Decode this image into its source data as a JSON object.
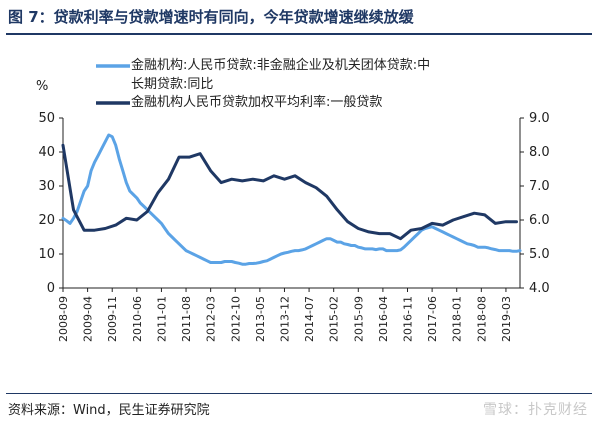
{
  "header": {
    "title": "图 7：贷款利率与贷款增速时有同向，今年贷款增速继续放缓"
  },
  "footer": {
    "source": "资料来源：Wind，民生证券研究院",
    "watermark": "雪球：扑克财经"
  },
  "colors": {
    "series1": "#5ba3e6",
    "series2": "#1f3864",
    "title": "#1f3864"
  },
  "chart_data": {
    "type": "line",
    "left_unit": "%",
    "left_ylim": [
      0,
      50
    ],
    "left_ticks": [
      "0",
      "10",
      "20",
      "30",
      "40",
      "50"
    ],
    "right_ylim": [
      4.0,
      9.0
    ],
    "right_ticks": [
      "4.0",
      "5.0",
      "6.0",
      "7.0",
      "8.0",
      "9.0"
    ],
    "x_ticks": [
      "2008-09",
      "2009-04",
      "2009-11",
      "2010-06",
      "2011-01",
      "2011-08",
      "2012-03",
      "2012-10",
      "2013-05",
      "2013-12",
      "2014-07",
      "2015-02",
      "2015-09",
      "2016-04",
      "2016-11",
      "2017-06",
      "2018-01",
      "2018-08",
      "2019-03"
    ],
    "legend_lines": [
      [
        "金融机构:人民币贷款:非金融企业及机关团体贷款:中",
        "长期贷款:同比"
      ],
      [
        "金融机构人民币贷款加权平均利率:一般贷款"
      ]
    ],
    "series": [
      {
        "axis": "left",
        "x": [
          "2008-09",
          "2008-10",
          "2008-11",
          "2008-12",
          "2009-01",
          "2009-02",
          "2009-03",
          "2009-04",
          "2009-05",
          "2009-06",
          "2009-07",
          "2009-08",
          "2009-09",
          "2009-10",
          "2009-11",
          "2009-12",
          "2010-01",
          "2010-02",
          "2010-03",
          "2010-04",
          "2010-05",
          "2010-06",
          "2010-07",
          "2010-08",
          "2010-09",
          "2010-10",
          "2010-11",
          "2010-12",
          "2011-01",
          "2011-02",
          "2011-03",
          "2011-04",
          "2011-05",
          "2011-06",
          "2011-07",
          "2011-08",
          "2011-09",
          "2011-10",
          "2011-11",
          "2011-12",
          "2012-01",
          "2012-02",
          "2012-03",
          "2012-04",
          "2012-05",
          "2012-06",
          "2012-07",
          "2012-08",
          "2012-09",
          "2012-10",
          "2012-11",
          "2012-12",
          "2013-01",
          "2013-02",
          "2013-03",
          "2013-04",
          "2013-05",
          "2013-06",
          "2013-07",
          "2013-08",
          "2013-09",
          "2013-10",
          "2013-11",
          "2013-12",
          "2014-01",
          "2014-02",
          "2014-03",
          "2014-04",
          "2014-05",
          "2014-06",
          "2014-07",
          "2014-08",
          "2014-09",
          "2014-10",
          "2014-11",
          "2014-12",
          "2015-01",
          "2015-02",
          "2015-03",
          "2015-04",
          "2015-05",
          "2015-06",
          "2015-07",
          "2015-08",
          "2015-09",
          "2015-10",
          "2015-11",
          "2015-12",
          "2016-01",
          "2016-02",
          "2016-03",
          "2016-04",
          "2016-05",
          "2016-06",
          "2016-07",
          "2016-08",
          "2016-09",
          "2016-10",
          "2016-11",
          "2016-12",
          "2017-01",
          "2017-02",
          "2017-03",
          "2017-04",
          "2017-05",
          "2017-06",
          "2017-07",
          "2017-08",
          "2017-09",
          "2017-10",
          "2017-11",
          "2017-12",
          "2018-01",
          "2018-02",
          "2018-03",
          "2018-04",
          "2018-05",
          "2018-06",
          "2018-07",
          "2018-08",
          "2018-09",
          "2018-10",
          "2018-11",
          "2018-12",
          "2019-01",
          "2019-02",
          "2019-03",
          "2019-04",
          "2019-05",
          "2019-06",
          "2019-07"
        ],
        "values": [
          20.5,
          19.8,
          19.0,
          20.5,
          22.5,
          25.5,
          28.5,
          30.0,
          34.5,
          37.0,
          39.0,
          41.0,
          43.0,
          45.0,
          44.5,
          42.0,
          38.0,
          34.5,
          31.0,
          28.5,
          27.5,
          26.5,
          25.0,
          24.0,
          23.0,
          22.0,
          21.0,
          20.0,
          19.0,
          17.5,
          16.0,
          15.0,
          14.0,
          13.0,
          12.0,
          11.0,
          10.5,
          10.0,
          9.5,
          9.0,
          8.5,
          8.0,
          7.5,
          7.5,
          7.5,
          7.5,
          7.8,
          7.8,
          7.8,
          7.5,
          7.3,
          7.0,
          7.0,
          7.2,
          7.2,
          7.3,
          7.5,
          7.8,
          8.0,
          8.5,
          9.0,
          9.5,
          10.0,
          10.3,
          10.5,
          10.8,
          11.0,
          11.0,
          11.2,
          11.5,
          12.0,
          12.5,
          13.0,
          13.5,
          14.0,
          14.5,
          14.5,
          14.0,
          13.5,
          13.5,
          13.0,
          12.8,
          12.5,
          12.5,
          12.0,
          11.8,
          11.5,
          11.5,
          11.5,
          11.3,
          11.5,
          11.5,
          11.0,
          11.0,
          11.0,
          11.0,
          11.2,
          12.0,
          13.0,
          14.0,
          15.0,
          16.0,
          17.0,
          17.5,
          17.8,
          18.0,
          17.5,
          17.0,
          16.5,
          16.0,
          15.5,
          15.0,
          14.5,
          14.0,
          13.5,
          13.0,
          12.8,
          12.5,
          12.0,
          12.0,
          12.0,
          11.8,
          11.5,
          11.3,
          11.0,
          11.0,
          11.0,
          11.0,
          10.8,
          10.8,
          11.0
        ]
      },
      {
        "axis": "right",
        "x": [
          "2008-09",
          "2008-12",
          "2009-03",
          "2009-06",
          "2009-09",
          "2009-12",
          "2010-03",
          "2010-06",
          "2010-09",
          "2010-12",
          "2011-03",
          "2011-06",
          "2011-09",
          "2011-12",
          "2012-03",
          "2012-06",
          "2012-09",
          "2012-12",
          "2013-03",
          "2013-06",
          "2013-09",
          "2013-12",
          "2014-03",
          "2014-06",
          "2014-09",
          "2014-12",
          "2015-03",
          "2015-06",
          "2015-09",
          "2015-12",
          "2016-03",
          "2016-06",
          "2016-09",
          "2016-12",
          "2017-03",
          "2017-06",
          "2017-09",
          "2017-12",
          "2018-03",
          "2018-06",
          "2018-09",
          "2018-12",
          "2019-03",
          "2019-06"
        ],
        "values": [
          8.2,
          6.3,
          5.7,
          5.7,
          5.75,
          5.85,
          6.05,
          6.0,
          6.25,
          6.8,
          7.2,
          7.85,
          7.85,
          7.95,
          7.45,
          7.1,
          7.2,
          7.15,
          7.2,
          7.15,
          7.3,
          7.2,
          7.3,
          7.1,
          6.95,
          6.7,
          6.3,
          5.95,
          5.75,
          5.65,
          5.6,
          5.6,
          5.45,
          5.7,
          5.75,
          5.9,
          5.85,
          6.0,
          6.1,
          6.2,
          6.15,
          5.9,
          5.95,
          5.95
        ]
      }
    ]
  }
}
